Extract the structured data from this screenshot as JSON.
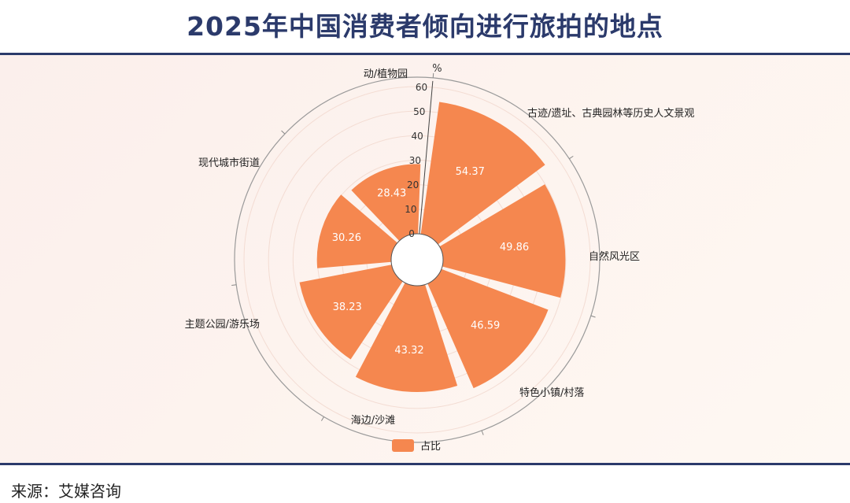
{
  "title": "2025年中国消费者倾向进行旅拍的地点",
  "source": "来源：艾媒咨询",
  "colors": {
    "bar": "#f5874f",
    "title": "#2b3a6b",
    "axis": "#555555"
  },
  "chart_data": {
    "type": "bar",
    "variant": "polar-radial",
    "categories": [
      "古迹/遗址、古典园林等历史人文景观",
      "自然风光区",
      "特色小镇/村落",
      "海边/沙滩",
      "主题公园/游乐场",
      "现代城市街道",
      "动/植物园"
    ],
    "series": [
      {
        "name": "占比",
        "values": [
          54.37,
          49.86,
          46.59,
          43.32,
          38.23,
          30.26,
          28.43
        ]
      }
    ],
    "data_labels": [
      "54.37",
      "49.86",
      "46.59",
      "43.32",
      "38.23",
      "30.26",
      "28.43"
    ],
    "radial_unit": "%",
    "radial_ticks": [
      "0",
      "10",
      "20",
      "30",
      "40",
      "50",
      "60"
    ],
    "rlim": [
      0,
      60
    ],
    "legend_position": "bottom"
  }
}
